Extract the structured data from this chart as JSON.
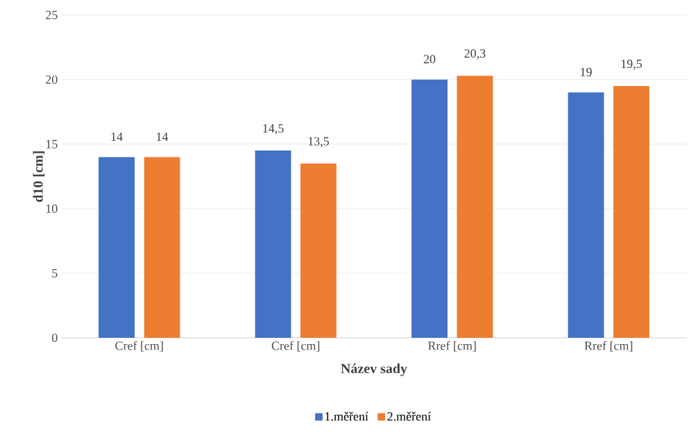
{
  "chart_data": {
    "type": "bar",
    "xlabel": "Název sady",
    "ylabel": "d10 [cm]",
    "categories": [
      "Cref [cm]",
      "Cref [cm]",
      "Rref [cm]",
      "Rref [cm]"
    ],
    "series": [
      {
        "name": "1.měření",
        "color": "#4472c4",
        "values": [
          14,
          14.5,
          20,
          19
        ],
        "value_labels": [
          "14",
          "14,5",
          "20",
          "19"
        ]
      },
      {
        "name": "2.měření",
        "color": "#ed7d31",
        "values": [
          14,
          13.5,
          20.3,
          19.5
        ],
        "value_labels": [
          "14",
          "13,5",
          "20,3",
          "19,5"
        ]
      }
    ],
    "ylim": [
      0,
      25
    ],
    "yticks": [
      0,
      5,
      10,
      15,
      20,
      25
    ],
    "grid": "y",
    "legend": "bottom"
  }
}
